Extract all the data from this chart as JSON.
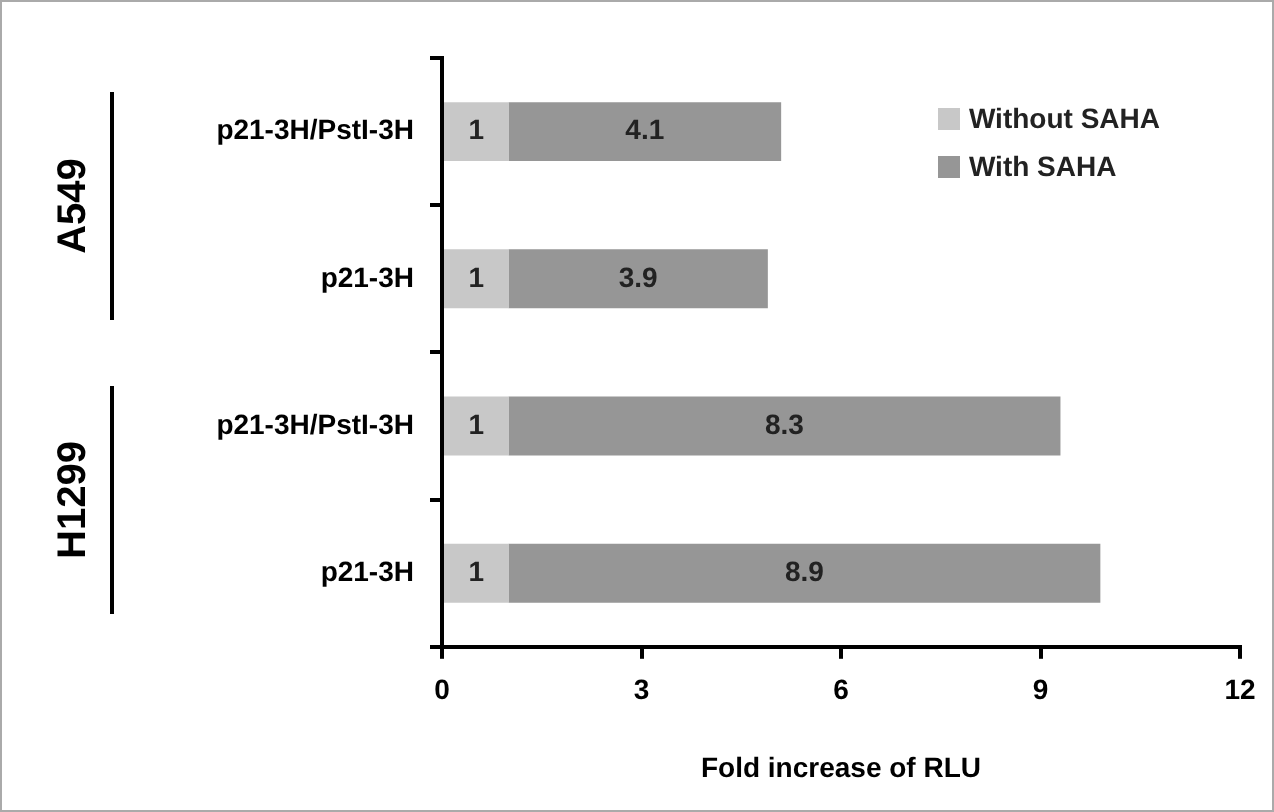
{
  "chart_data": {
    "type": "bar",
    "orientation": "horizontal",
    "stacked": true,
    "xlabel": "Fold increase of RLU",
    "categories": [
      "p21-3H/PstI-3H",
      "p21-3H",
      "p21-3H/PstI-3H",
      "p21-3H"
    ],
    "series": [
      {
        "name": "Without SAHA",
        "color": "#c8c8c8",
        "values": [
          1,
          1,
          1,
          1
        ]
      },
      {
        "name": "With SAHA",
        "color": "#969696",
        "values": [
          4.1,
          3.9,
          8.3,
          8.9
        ]
      }
    ],
    "xlim": [
      0,
      12
    ],
    "xticks": [
      0,
      3,
      6,
      9,
      12
    ],
    "grid": false,
    "legend": "top right",
    "data_labels": true,
    "annotations": [
      "A549",
      "H1299"
    ]
  }
}
